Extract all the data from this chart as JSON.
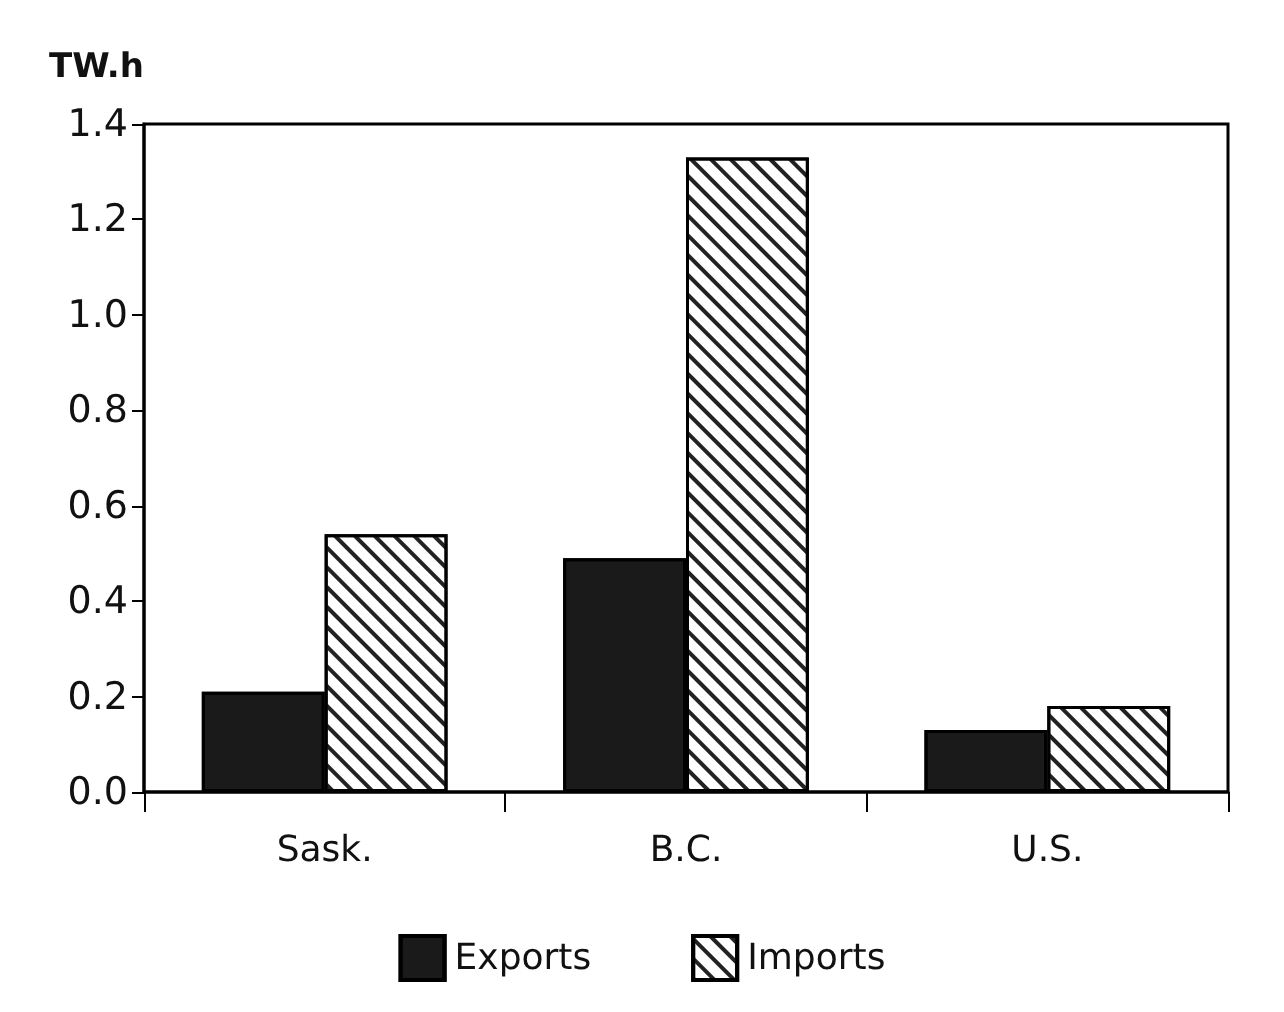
{
  "chart_data": {
    "type": "bar",
    "ylabel": "TW.h",
    "categories": [
      "Sask.",
      "B.C.",
      "U.S."
    ],
    "series": [
      {
        "name": "Exports",
        "color": "#1a1a1a",
        "values": [
          0.21,
          0.49,
          0.13
        ]
      },
      {
        "name": "Imports",
        "color": "#ffffff",
        "values": [
          0.54,
          1.33,
          0.18
        ]
      }
    ],
    "ylim": [
      0,
      1.4
    ],
    "yticks": [
      {
        "value": 0,
        "label": "0.0"
      },
      {
        "value": 0.2,
        "label": "0.2"
      },
      {
        "value": 0.4,
        "label": "0.4"
      },
      {
        "value": 0.6,
        "label": "0.6"
      },
      {
        "value": 0.8,
        "label": "0.8"
      },
      {
        "value": 1,
        "label": "1.0"
      },
      {
        "value": 1.2,
        "label": "1.2"
      },
      {
        "value": 1.4,
        "label": "1.4"
      }
    ],
    "grid": false,
    "legend": "bottom"
  }
}
